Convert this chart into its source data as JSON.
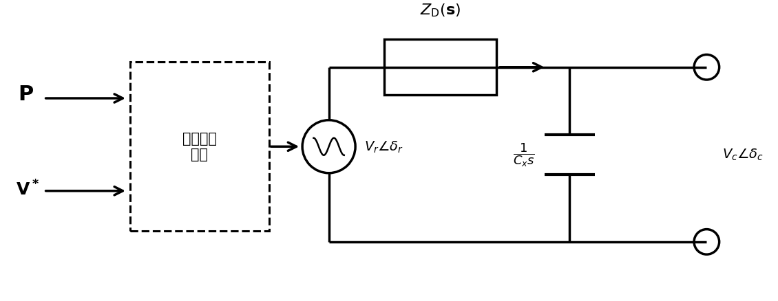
{
  "bg_color": "#ffffff",
  "line_color": "#000000",
  "line_width": 2.5,
  "fig_width": 11.3,
  "fig_height": 4.39,
  "P_label": "$\\mathbf{P}$",
  "Vstar_label": "$\\mathbf{V^*}$",
  "block_label": "下垂控制\n模块",
  "ZD_label": "$Z_{\\mathrm{D}}(\\mathbf{s})$",
  "Vr_label": "$V_r\\angle\\delta_r$",
  "Cx_label": "$\\dfrac{1}{C_x s}$",
  "Vc_label": "$V_c\\angle\\delta_c$"
}
